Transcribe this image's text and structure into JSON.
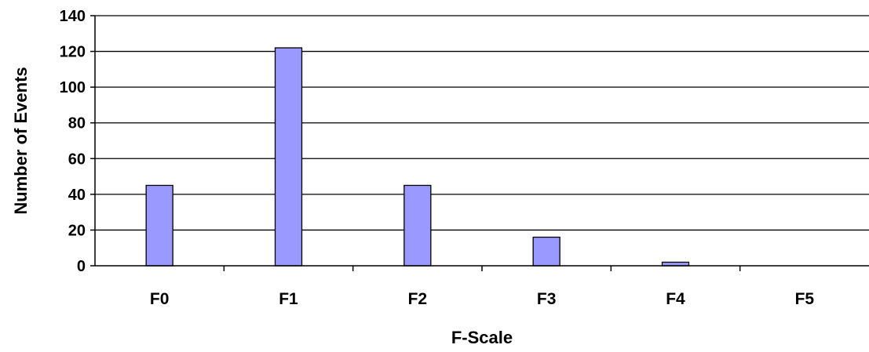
{
  "chart_data": {
    "type": "bar",
    "categories": [
      "F0",
      "F1",
      "F2",
      "F3",
      "F4",
      "F5"
    ],
    "values": [
      45,
      122,
      45,
      16,
      2,
      0
    ],
    "title": "",
    "xlabel": "F-Scale",
    "ylabel": "Number of Events",
    "ylim": [
      0,
      140
    ],
    "yticks": [
      0,
      20,
      40,
      60,
      80,
      100,
      120,
      140
    ],
    "grid": true,
    "legend": "none",
    "bar_color": "#9999ff"
  }
}
